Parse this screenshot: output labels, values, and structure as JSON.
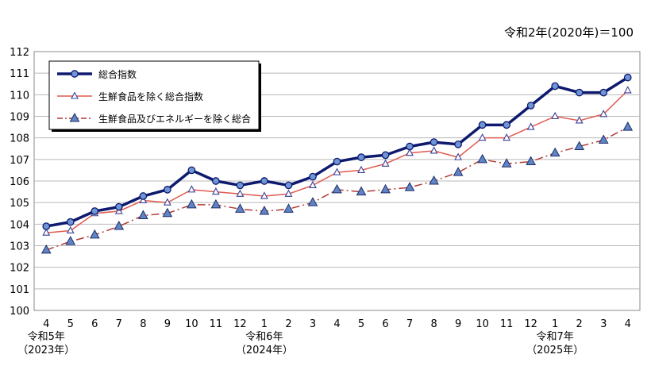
{
  "chart_data": {
    "type": "line",
    "base_note": "令和2年(2020年)＝100",
    "ylim": [
      100,
      112
    ],
    "yticks": [
      100,
      101,
      102,
      103,
      104,
      105,
      106,
      107,
      108,
      109,
      110,
      111,
      112
    ],
    "categories": [
      "4",
      "5",
      "6",
      "7",
      "8",
      "9",
      "10",
      "11",
      "12",
      "1",
      "2",
      "3",
      "4",
      "5",
      "6",
      "7",
      "8",
      "9",
      "10",
      "11",
      "12",
      "1",
      "2",
      "3",
      "4"
    ],
    "year_labels": [
      {
        "index": 0,
        "era": "令和5年",
        "western": "（2023年）"
      },
      {
        "index": 9,
        "era": "令和6年",
        "western": "（2024年）"
      },
      {
        "index": 21,
        "era": "令和7年",
        "western": "（2025年）"
      }
    ],
    "grid": true,
    "legend_position": "top-left",
    "series": [
      {
        "name": "総合指数",
        "color": "#0d1a6e",
        "marker": "circle",
        "values": [
          103.9,
          104.1,
          104.6,
          104.8,
          105.3,
          105.6,
          106.5,
          106.0,
          105.8,
          106.0,
          105.8,
          106.2,
          106.9,
          107.1,
          107.2,
          107.6,
          107.8,
          107.7,
          108.6,
          108.6,
          109.5,
          110.4,
          110.1,
          110.1,
          110.8
        ]
      },
      {
        "name": "生鮮食品を除く総合指数",
        "color": "#e05a4f",
        "marker": "triangle-open",
        "values": [
          103.6,
          103.7,
          104.5,
          104.6,
          105.1,
          105.0,
          105.6,
          105.5,
          105.4,
          105.3,
          105.4,
          105.8,
          106.4,
          106.5,
          106.8,
          107.3,
          107.4,
          107.1,
          108.0,
          108.0,
          108.5,
          109.0,
          108.8,
          109.1,
          110.2
        ]
      },
      {
        "name": "生鮮食品及びエネルギーを除く総合",
        "color": "#b03a36",
        "marker": "triangle",
        "values": [
          102.8,
          103.2,
          103.5,
          103.9,
          104.4,
          104.5,
          104.9,
          104.9,
          104.7,
          104.6,
          104.7,
          105.0,
          105.6,
          105.5,
          105.6,
          105.7,
          106.0,
          106.4,
          107.0,
          106.8,
          106.9,
          107.3,
          107.6,
          107.9,
          108.5
        ]
      }
    ]
  }
}
